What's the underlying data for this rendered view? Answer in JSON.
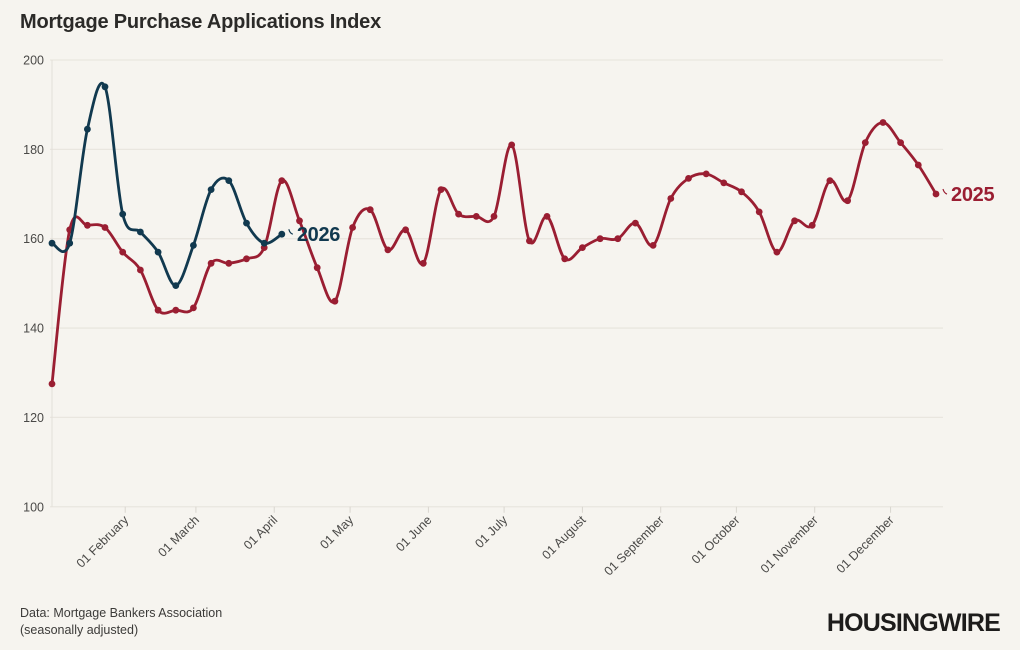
{
  "title": "Mortgage Purchase Applications Index",
  "source": {
    "line1": "Data: Mortgage Bankers Association",
    "line2": "(seasonally adjusted)"
  },
  "logo_text": "HOUSINGWIRE",
  "colors": {
    "background": "#f6f4ef",
    "grid_line": "#e9e6df",
    "axis_line": "#e2dfd8",
    "tick_mark": "#d9d6cf",
    "tick_text": "#4a4947",
    "title_text": "#2b2a28",
    "series_2025": "#9a1e32",
    "series_2026": "#11394f",
    "logo_text_color": "#1d1c1b"
  },
  "chart_data": {
    "type": "line",
    "title": "Mortgage Purchase Applications Index",
    "xlabel": "",
    "ylabel": "",
    "ylim": [
      100,
      200
    ],
    "y_ticks": [
      100,
      120,
      140,
      160,
      180,
      200
    ],
    "grid": "horizontal",
    "legend_position": "inline-end-of-line-labels",
    "x_unit": "weekly observations, Jan through Dec",
    "x_months": [
      {
        "label": "01 February",
        "week": 4.14
      },
      {
        "label": "01 March",
        "week": 8.14
      },
      {
        "label": "01 April",
        "week": 12.57
      },
      {
        "label": "01 May",
        "week": 16.86
      },
      {
        "label": "01 June",
        "week": 21.29
      },
      {
        "label": "01 July",
        "week": 25.57
      },
      {
        "label": "01 August",
        "week": 30.0
      },
      {
        "label": "01 September",
        "week": 34.43
      },
      {
        "label": "01 October",
        "week": 38.71
      },
      {
        "label": "01 November",
        "week": 43.14
      },
      {
        "label": "01 December",
        "week": 47.43
      }
    ],
    "series": [
      {
        "name": "2025",
        "color": "#9a1e32",
        "start_week": 0,
        "values": [
          127.5,
          162,
          163,
          162.5,
          157,
          153,
          144,
          144,
          144.5,
          154.5,
          154.5,
          155.5,
          158,
          173,
          164,
          153.5,
          146,
          162.5,
          166.5,
          157.5,
          162,
          154.5,
          171,
          165.5,
          165,
          165,
          181,
          159.5,
          165,
          155.5,
          158,
          160,
          160,
          163.5,
          158.5,
          169,
          173.5,
          174.5,
          172.5,
          170.5,
          166,
          157,
          164,
          163,
          173,
          168.5,
          181.5,
          186,
          181.5,
          176.5,
          170
        ]
      },
      {
        "name": "2026",
        "color": "#11394f",
        "start_week": 0,
        "values": [
          159,
          159,
          184.5,
          194,
          165.5,
          161.5,
          157,
          149.5,
          158.5,
          171,
          173,
          163.5,
          159,
          161
        ]
      }
    ]
  }
}
